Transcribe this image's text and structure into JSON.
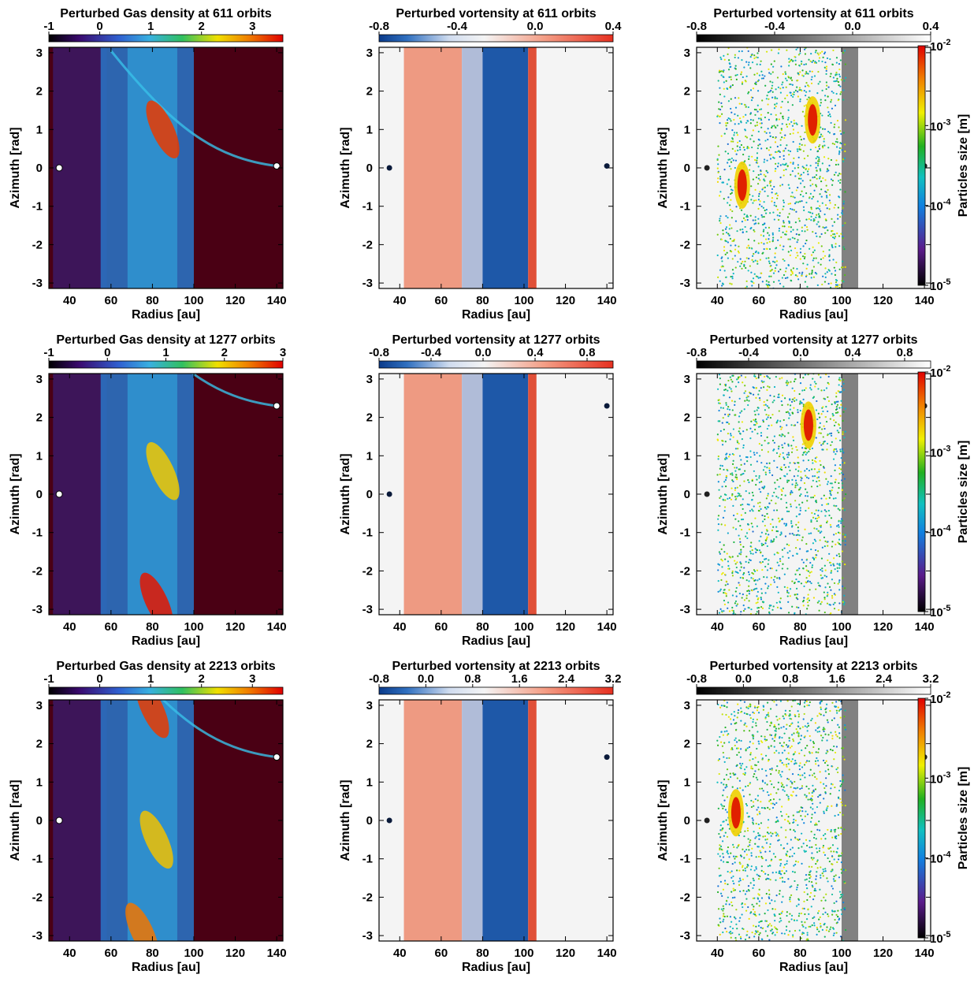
{
  "figure": {
    "rows": [
      {
        "orbits": "611",
        "density": {
          "title": "Perturbed Gas density at 611 orbits",
          "cbar_ticks": [
            "-1",
            "0",
            "1",
            "2",
            "3"
          ],
          "cbar_range": [
            -1,
            3.6
          ],
          "planet_inner_phi": 0.0,
          "planet_outer_phi": 0.05,
          "density_peaks": [
            {
              "r": 85,
              "phi": 1.0,
              "v": 3.3
            }
          ]
        },
        "vortensity": {
          "title": "Perturbed vortensity at 611 orbits",
          "cbar_ticks": [
            "-0.8",
            "-0.4",
            "0.0",
            "0.4"
          ],
          "cbar_range": [
            -0.8,
            0.4
          ]
        },
        "particles": {
          "title": "Perturbed vortensity at 611 orbits",
          "cbar_ticks": [
            "-0.8",
            "-0.4",
            "0.0",
            "0.4"
          ],
          "cbar_range": [
            -0.8,
            0.4
          ],
          "dust_clumps": [
            {
              "r": 52,
              "phi": -0.45
            },
            {
              "r": 86,
              "phi": 1.25
            }
          ]
        }
      },
      {
        "orbits": "1277",
        "density": {
          "title": "Perturbed Gas density at 1277 orbits",
          "cbar_ticks": [
            "-1",
            "0",
            "1",
            "2",
            "3"
          ],
          "cbar_range": [
            -1,
            3
          ],
          "planet_inner_phi": 0.0,
          "planet_outer_phi": 2.3,
          "density_peaks": [
            {
              "r": 85,
              "phi": 0.6,
              "v": 2.0
            },
            {
              "r": 82,
              "phi": -2.8,
              "v": 2.9
            }
          ]
        },
        "vortensity": {
          "title": "Perturbed vortensity at 1277 orbits",
          "cbar_ticks": [
            "-0.8",
            "-0.4",
            "0.0",
            "0.4",
            "0.8"
          ],
          "cbar_range": [
            -0.8,
            1.0
          ]
        },
        "particles": {
          "title": "Perturbed vortensity at 1277 orbits",
          "cbar_ticks": [
            "-0.8",
            "-0.4",
            "0.0",
            "0.4",
            "0.8"
          ],
          "cbar_range": [
            -0.8,
            1.0
          ],
          "dust_clumps": [
            {
              "r": 84,
              "phi": 1.8
            }
          ]
        }
      },
      {
        "orbits": "2213",
        "density": {
          "title": "Perturbed Gas density at 2213 orbits",
          "cbar_ticks": [
            "-1",
            "0",
            "1",
            "2",
            "3"
          ],
          "cbar_range": [
            -1,
            3.6
          ],
          "planet_inner_phi": 0.0,
          "planet_outer_phi": 1.65,
          "density_peaks": [
            {
              "r": 80,
              "phi": 2.9,
              "v": 3.3
            },
            {
              "r": 82,
              "phi": -0.5,
              "v": 2.5
            },
            {
              "r": 75,
              "phi": -2.9,
              "v": 3.0
            }
          ]
        },
        "vortensity": {
          "title": "Perturbed vortensity at 2213 orbits",
          "cbar_ticks": [
            "-0.8",
            "0.0",
            "0.8",
            "1.6",
            "2.4",
            "3.2"
          ],
          "cbar_range": [
            -0.8,
            3.2
          ]
        },
        "particles": {
          "title": "Perturbed vortensity at 2213 orbits",
          "cbar_ticks": [
            "-0.8",
            "0.0",
            "0.8",
            "1.6",
            "2.4",
            "3.2"
          ],
          "cbar_range": [
            -0.8,
            3.2
          ],
          "dust_clumps": [
            {
              "r": 49,
              "phi": 0.2
            }
          ]
        }
      }
    ],
    "x_label": "Radius [au]",
    "y_label": "Azimuth [rad]",
    "size_label": "Particles size [m]",
    "size_ticks": [
      {
        "base": "10",
        "exp": "-2"
      },
      {
        "base": "10",
        "exp": "-3"
      },
      {
        "base": "10",
        "exp": "-4"
      },
      {
        "base": "10",
        "exp": "-5"
      }
    ]
  },
  "chart_data": {
    "type": "heatmap",
    "description_units": "radius in au, azimuth in rad",
    "x_ticks": [
      40,
      60,
      80,
      100,
      120,
      140
    ],
    "y_ticks": [
      3,
      2,
      1,
      0,
      -1,
      -2,
      -3
    ],
    "xlim": [
      30,
      143
    ],
    "ylim": [
      -3.14159,
      3.14159
    ],
    "planets_r": [
      35,
      140
    ],
    "particle_size_range": [
      1e-05,
      0.01
    ],
    "colormaps": {
      "density": [
        "#000000",
        "#3a0a6e",
        "#3060d0",
        "#38b0e0",
        "#30c060",
        "#f0e000",
        "#f08000",
        "#e00000"
      ],
      "vortensity": [
        "#0a3a8a",
        "#f4f4f4",
        "#e63020"
      ],
      "background_gray": [
        "#000000",
        "#ffffff"
      ],
      "particle_size": [
        "#000000",
        "#5a1a8a",
        "#1080e0",
        "#10c0c0",
        "#20b020",
        "#f0f000",
        "#f08000",
        "#e00000"
      ]
    }
  }
}
